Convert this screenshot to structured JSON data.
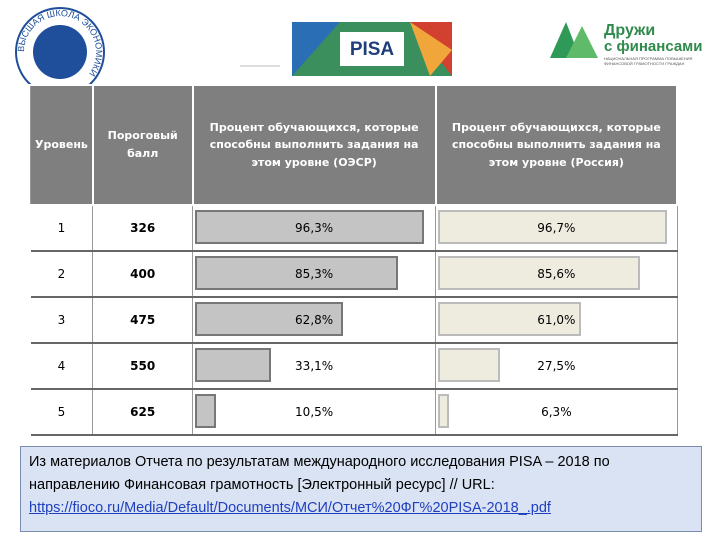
{
  "header": {
    "hse_logo": "ВЫСШАЯ ШКОЛА ЭКОНОМИКИ",
    "pisa_logo": "PISA",
    "partner": {
      "line1": "Дружи",
      "line2": "с финансами",
      "tagline1": "НАЦИОНАЛЬНАЯ ПРОГРАММА ПОВЫШЕНИЯ",
      "tagline2": "ФИНАНСОВОЙ ГРАМОТНОСТИ ГРАЖДАН"
    }
  },
  "table": {
    "columns": [
      "Уровень",
      "Пороговый балл",
      "Процент обучающихся, которые способны выполнить задания на этом уровне (ОЭСР)",
      "Процент обучающихся, которые способны выполнить задания на этом уровне (Россия)"
    ],
    "rows": [
      {
        "level": "1",
        "threshold": "326",
        "oecd": 96.3,
        "oecd_label": "96,3%",
        "russia": 96.7,
        "russia_label": "96,7%"
      },
      {
        "level": "2",
        "threshold": "400",
        "oecd": 85.3,
        "oecd_label": "85,3%",
        "russia": 85.6,
        "russia_label": "85,6%"
      },
      {
        "level": "3",
        "threshold": "475",
        "oecd": 62.8,
        "oecd_label": "62,8%",
        "russia": 61.0,
        "russia_label": "61,0%"
      },
      {
        "level": "4",
        "threshold": "550",
        "oecd": 33.1,
        "oecd_label": "33,1%",
        "russia": 27.5,
        "russia_label": "27,5%"
      },
      {
        "level": "5",
        "threshold": "625",
        "oecd": 10.5,
        "oecd_label": "10,5%",
        "russia": 6.3,
        "russia_label": "6,3%"
      }
    ]
  },
  "caption": {
    "text": "Из материалов Отчета по результатам международного исследования PISA – 2018 по направлению Финансовая грамотность [Электронный ресурс] // URL:",
    "link": "https://fioco.ru/Media/Default/Documents/МСИ/Отчет%20ФГ%20PISA-2018_.pdf"
  }
}
